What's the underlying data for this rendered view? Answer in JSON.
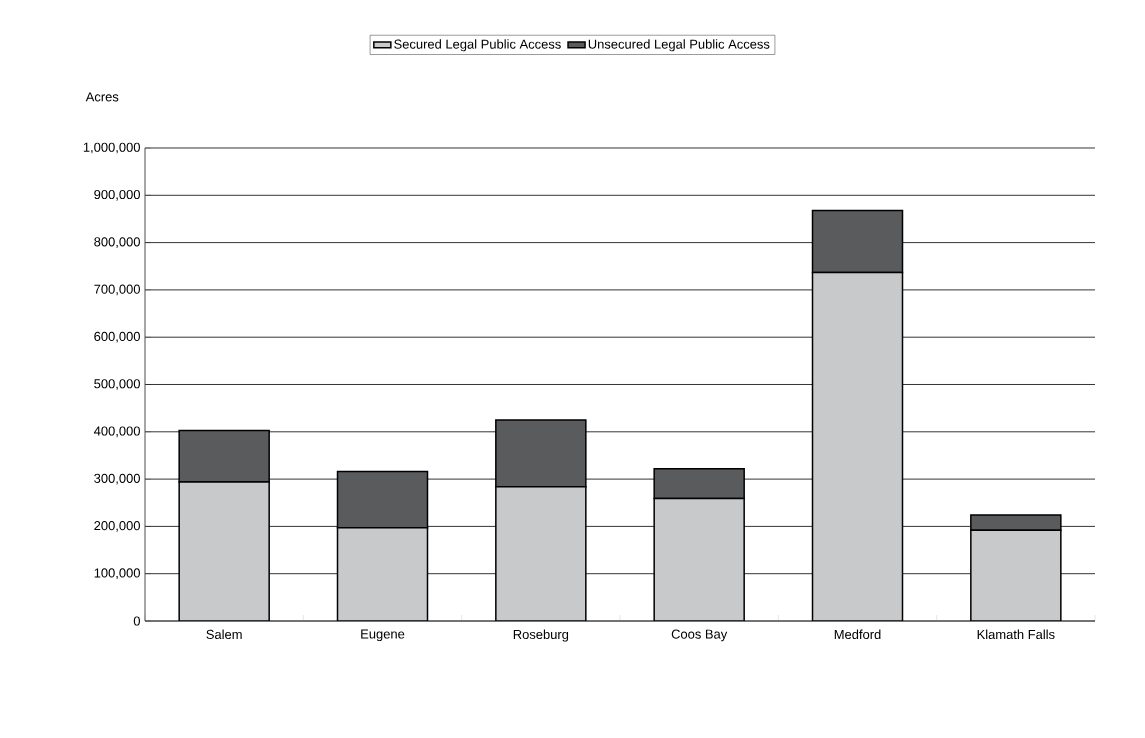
{
  "chart_data": {
    "type": "bar",
    "stacked": true,
    "ylabel": "Acres",
    "categories": [
      "Salem",
      "Eugene",
      "Roseburg",
      "Coos Bay",
      "Medford",
      "Klamath Falls"
    ],
    "series": [
      {
        "name": "Secured Legal Public Access",
        "color": "#c8c9cb",
        "values": [
          294000,
          197000,
          284000,
          259000,
          737000,
          192000
        ]
      },
      {
        "name": "Unsecured Legal Public Access",
        "color": "#5a5b5d",
        "values": [
          109000,
          119000,
          141000,
          63000,
          131000,
          32000
        ]
      }
    ],
    "ylim": [
      0,
      1000000
    ],
    "yticks": [
      0,
      {
        "value": 100000,
        "label": "100,000"
      },
      {
        "value": 200000,
        "label": "200,000"
      },
      {
        "value": 300000,
        "label": "300,000"
      },
      {
        "value": 400000,
        "label": "400,000"
      },
      {
        "value": 500000,
        "label": "500,000"
      },
      {
        "value": 600000,
        "label": "600,000"
      },
      {
        "value": 700000,
        "label": "700,000"
      },
      {
        "value": 800000,
        "label": "800,000"
      },
      {
        "value": 900000,
        "label": "900,000"
      },
      {
        "value": 1000000,
        "label": "1,000,000"
      }
    ],
    "grid": "y",
    "legend": "top"
  }
}
